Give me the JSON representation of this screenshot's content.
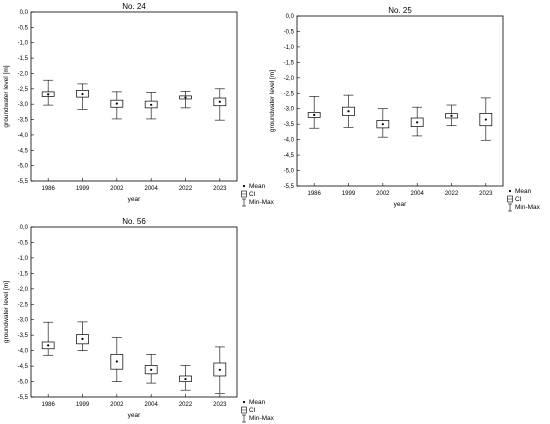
{
  "chart_data": [
    {
      "type": "box",
      "title": "No. 24",
      "xlabel": "year",
      "ylabel": "groundwater level [m]",
      "ylim": [
        -5.5,
        0.0
      ],
      "y_ticks": [
        "0,0",
        "-0,5",
        "-1,0",
        "-1,5",
        "-2,0",
        "-2,5",
        "-3,0",
        "-3,5",
        "-4,0",
        "-4,5",
        "-5,0",
        "-5,5"
      ],
      "categories": [
        "1986",
        "1999",
        "2002",
        "2004",
        "2022",
        "2023"
      ],
      "series": [
        {
          "name": "Mean",
          "values": [
            -2.68,
            -2.67,
            -2.98,
            -3.02,
            -2.78,
            -2.92
          ]
        },
        {
          "name": "CI",
          "values": [
            [
              -2.75,
              -2.6
            ],
            [
              -2.77,
              -2.55
            ],
            [
              -3.1,
              -2.87
            ],
            [
              -3.12,
              -2.9
            ],
            [
              -2.83,
              -2.73
            ],
            [
              -3.05,
              -2.8
            ]
          ]
        },
        {
          "name": "Min-Max",
          "values": [
            [
              -3.03,
              -2.22
            ],
            [
              -3.17,
              -2.34
            ],
            [
              -3.48,
              -2.6
            ],
            [
              -3.48,
              -2.62
            ],
            [
              -3.12,
              -2.58
            ],
            [
              -3.52,
              -2.5
            ]
          ]
        }
      ],
      "legend": [
        "Mean",
        "CI",
        "Min-Max"
      ]
    },
    {
      "type": "box",
      "title": "No. 25",
      "xlabel": "year",
      "ylabel": "groundwater level [m]",
      "ylim": [
        -5.5,
        0.0
      ],
      "y_ticks": [
        "0,0",
        "-0,5",
        "-1,0",
        "-1,5",
        "-2,0",
        "-2,5",
        "-3,0",
        "-3,5",
        "-4,0",
        "-4,5",
        "-5,0",
        "-5,5"
      ],
      "categories": [
        "1986",
        "1999",
        "2002",
        "2004",
        "2022",
        "2023"
      ],
      "series": [
        {
          "name": "Mean",
          "values": [
            -3.2,
            -3.08,
            -3.5,
            -3.44,
            -3.23,
            -3.35
          ]
        },
        {
          "name": "CI",
          "values": [
            [
              -3.28,
              -3.12
            ],
            [
              -3.22,
              -2.95
            ],
            [
              -3.62,
              -3.38
            ],
            [
              -3.58,
              -3.3
            ],
            [
              -3.3,
              -3.16
            ],
            [
              -3.55,
              -3.15
            ]
          ]
        },
        {
          "name": "Min-Max",
          "values": [
            [
              -3.63,
              -2.6
            ],
            [
              -3.6,
              -2.56
            ],
            [
              -3.92,
              -3.0
            ],
            [
              -3.88,
              -2.95
            ],
            [
              -3.55,
              -2.88
            ],
            [
              -4.02,
              -2.65
            ]
          ]
        }
      ],
      "legend": [
        "Mean",
        "CI",
        "Min-Max"
      ]
    },
    {
      "type": "box",
      "title": "No. 56",
      "xlabel": "year",
      "ylabel": "groundwater level [m]",
      "ylim": [
        -5.5,
        0.0
      ],
      "y_ticks": [
        "0,0",
        "-0,5",
        "-1,0",
        "-1,5",
        "-2,0",
        "-2,5",
        "-3,0",
        "-3,5",
        "-4,0",
        "-4,5",
        "-5,0",
        "-5,5"
      ],
      "categories": [
        "1986",
        "1999",
        "2002",
        "2004",
        "2022",
        "2023"
      ],
      "series": [
        {
          "name": "Mean",
          "values": [
            -3.83,
            -3.62,
            -4.35,
            -4.62,
            -4.92,
            -4.62
          ]
        },
        {
          "name": "CI",
          "values": [
            [
              -3.94,
              -3.72
            ],
            [
              -3.78,
              -3.48
            ],
            [
              -4.6,
              -4.12
            ],
            [
              -4.75,
              -4.48
            ],
            [
              -5.0,
              -4.82
            ],
            [
              -4.82,
              -4.4
            ]
          ]
        },
        {
          "name": "Min-Max",
          "values": [
            [
              -4.15,
              -3.08
            ],
            [
              -4.0,
              -3.07
            ],
            [
              -5.0,
              -3.58
            ],
            [
              -5.05,
              -4.12
            ],
            [
              -5.28,
              -4.48
            ],
            [
              -5.38,
              -3.88
            ]
          ]
        }
      ],
      "legend": [
        "Mean",
        "CI",
        "Min-Max"
      ]
    }
  ]
}
